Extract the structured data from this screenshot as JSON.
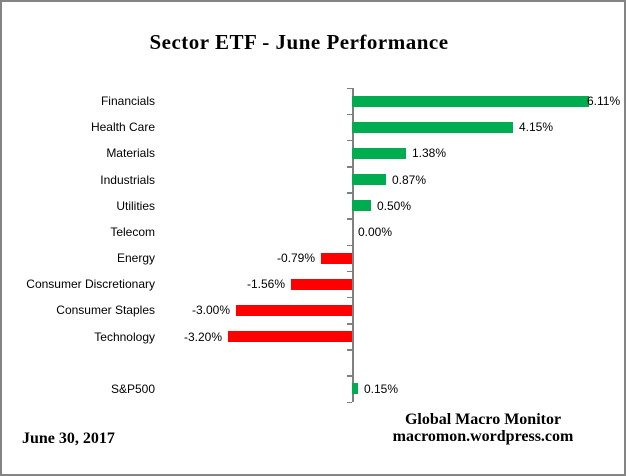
{
  "title": "Sector ETF - June Performance",
  "footer": {
    "date": "June 30, 2017",
    "source_line1": "Global Macro Monitor",
    "source_line2": "macromon.wordpress.com"
  },
  "chart_data": {
    "type": "bar",
    "orientation": "horizontal",
    "title": "Sector ETF - June Performance",
    "categories": [
      "Financials",
      "Health Care",
      "Materials",
      "Industrials",
      "Utilities",
      "Telecom",
      "Energy",
      "Consumer Discretionary",
      "Consumer Staples",
      "Technology",
      "S&P500"
    ],
    "values": [
      6.11,
      4.15,
      1.38,
      0.87,
      0.5,
      0.0,
      -0.79,
      -1.56,
      -3.0,
      -3.2,
      0.15
    ],
    "value_labels": [
      "6.11%",
      "4.15%",
      "1.38%",
      "0.87%",
      "0.50%",
      "0.00%",
      "-0.79%",
      "-1.56%",
      "-3.00%",
      "-3.20%",
      "0.15%"
    ],
    "xlabel": "",
    "ylabel": "",
    "xlim": [
      -3.5,
      7.0
    ],
    "grid": false,
    "legend": false,
    "gap_before_category": "S&P500",
    "positive_color": "#00AC50",
    "negative_color": "#FE0000",
    "axis_color": "#808080"
  }
}
